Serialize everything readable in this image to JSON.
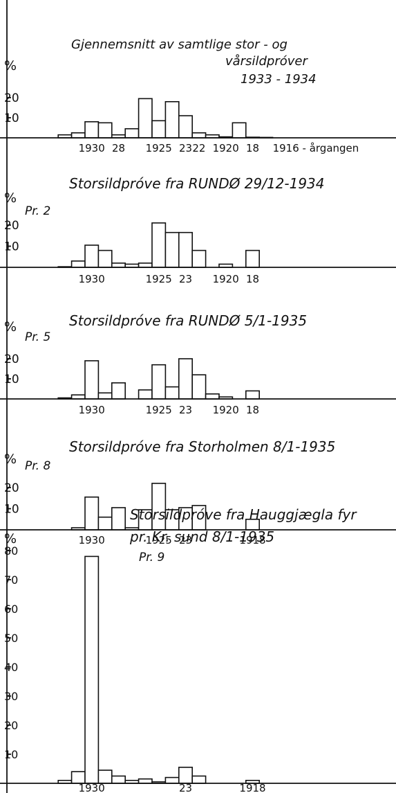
{
  "chart_data": [
    {
      "type": "bar",
      "title": "Gjennemsnitt av samtlige stor - og vårsildpróver 1933 - 1934",
      "title_lines": [
        "Gjennemsnitt av samtlige stor - og",
        "vårsildpróver",
        "1933 - 1934"
      ],
      "sample": "",
      "ylabel": "%",
      "ylim": [
        0,
        25
      ],
      "yticks": [
        "20",
        "10"
      ],
      "ytick_values": [
        20,
        10
      ],
      "x": [
        1932,
        1931,
        1930,
        1929,
        1928,
        1927,
        1926,
        1925,
        1924,
        1923,
        1922,
        1921,
        1920,
        1919,
        1918,
        1917,
        1916
      ],
      "values": [
        1.5,
        2.5,
        8,
        7.5,
        1.5,
        4.5,
        19.5,
        8.5,
        18,
        11,
        2.5,
        1.5,
        0.5,
        7.5,
        0.3,
        0.2,
        0
      ],
      "x_labels": [
        {
          "text": "1930",
          "x": 1930
        },
        {
          "text": "28",
          "x": 1928
        },
        {
          "text": "1925",
          "x": 1925
        },
        {
          "text": "23",
          "x": 1923
        },
        {
          "text": "22",
          "x": 1922
        },
        {
          "text": "1920",
          "x": 1920
        },
        {
          "text": "18",
          "x": 1918
        },
        {
          "text": "1916 - årgangen",
          "x": 1916
        }
      ]
    },
    {
      "type": "bar",
      "title": "Storsildpróve fra RUNDØ 29/12-1934",
      "title_lines": [
        "Storsildpróve fra RUNDØ 29/12-1934"
      ],
      "sample": "Pr. 2",
      "ylabel": "%",
      "ylim": [
        0,
        25
      ],
      "yticks": [
        "20",
        "10"
      ],
      "ytick_values": [
        20,
        10
      ],
      "x": [
        1932,
        1931,
        1930,
        1929,
        1928,
        1927,
        1926,
        1925,
        1924,
        1923,
        1922,
        1921,
        1920,
        1919,
        1918
      ],
      "values": [
        0.3,
        3,
        10.5,
        8,
        2,
        1.5,
        2,
        21,
        16.5,
        16.5,
        8,
        0,
        1.5,
        0,
        8
      ],
      "x_labels": [
        {
          "text": "1930",
          "x": 1930
        },
        {
          "text": "1925",
          "x": 1925
        },
        {
          "text": "23",
          "x": 1923
        },
        {
          "text": "1920",
          "x": 1920
        },
        {
          "text": "18",
          "x": 1918
        }
      ]
    },
    {
      "type": "bar",
      "title": "Storsildpróve fra RUNDØ 5/1-1935",
      "title_lines": [
        "Storsildpróve fra RUNDØ 5/1-1935"
      ],
      "sample": "Pr. 5",
      "ylabel": "%",
      "ylim": [
        0,
        25
      ],
      "yticks": [
        "20",
        "10"
      ],
      "ytick_values": [
        20,
        10
      ],
      "x": [
        1932,
        1931,
        1930,
        1929,
        1928,
        1927,
        1926,
        1925,
        1924,
        1923,
        1922,
        1921,
        1920,
        1919,
        1918
      ],
      "values": [
        0.5,
        2,
        19,
        3,
        8,
        0,
        4.5,
        17,
        6,
        20,
        12,
        2.5,
        1,
        0,
        4
      ],
      "x_labels": [
        {
          "text": "1930",
          "x": 1930
        },
        {
          "text": "1925",
          "x": 1925
        },
        {
          "text": "23",
          "x": 1923
        },
        {
          "text": "1920",
          "x": 1920
        },
        {
          "text": "18",
          "x": 1918
        }
      ]
    },
    {
      "type": "bar",
      "title": "Storsildpróve fra Storholmen 8/1-1935",
      "title_lines": [
        "Storsildpróve fra Storholmen 8/1-1935"
      ],
      "sample": "Pr. 8",
      "ylabel": "%",
      "ylim": [
        0,
        25
      ],
      "yticks": [
        "20",
        "10"
      ],
      "ytick_values": [
        20,
        10
      ],
      "x": [
        1931,
        1930,
        1929,
        1928,
        1927,
        1926,
        1925,
        1924,
        1923,
        1922,
        1921,
        1920,
        1919,
        1918
      ],
      "values": [
        1,
        15.5,
        6,
        10.5,
        1,
        9.5,
        22,
        9.5,
        10.5,
        11.5,
        0,
        0,
        0,
        5
      ],
      "x_labels": [
        {
          "text": "1930",
          "x": 1930
        },
        {
          "text": "1925",
          "x": 1925
        },
        {
          "text": "23",
          "x": 1923
        },
        {
          "text": "1918",
          "x": 1918
        }
      ]
    },
    {
      "type": "bar",
      "title": "Storsildpróve fra Hauggjægla fyr pr. Kr. sund 8/1-1935",
      "title_lines": [
        "Storsildpróve fra Hauggjægla fyr",
        "pr. Kr. sund 8/1-1935"
      ],
      "sample": "Pr. 9",
      "ylabel": "%",
      "ylim": [
        0,
        85
      ],
      "yticks": [
        "80",
        "70",
        "60",
        "50",
        "40",
        "30",
        "20",
        "10"
      ],
      "ytick_values": [
        80,
        70,
        60,
        50,
        40,
        30,
        20,
        10
      ],
      "x": [
        1932,
        1931,
        1930,
        1929,
        1928,
        1927,
        1926,
        1925,
        1924,
        1923,
        1922,
        1921,
        1920,
        1919,
        1918
      ],
      "values": [
        1,
        4,
        78,
        4.5,
        2.5,
        1,
        1.5,
        0.5,
        2,
        5.5,
        2.5,
        0,
        0,
        0,
        1
      ],
      "x_labels": [
        {
          "text": "1930",
          "x": 1930
        },
        {
          "text": "23",
          "x": 1923
        },
        {
          "text": "1918",
          "x": 1918
        }
      ]
    }
  ]
}
